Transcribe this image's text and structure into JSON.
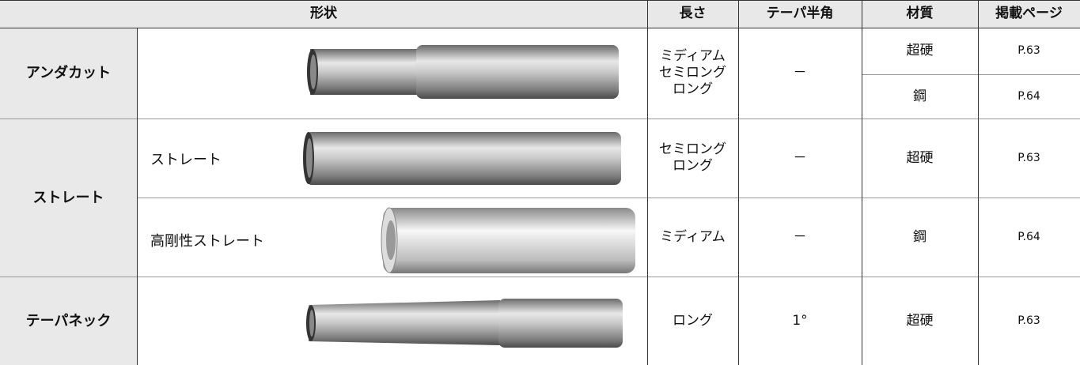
{
  "header": {
    "shape": "形状",
    "length": "長さ",
    "taper": "テーパ半角",
    "material": "材質",
    "page": "掲載ページ"
  },
  "rows": [
    {
      "category": "アンダカット",
      "lengths": [
        "ミディアム",
        "セミロング",
        "ロング"
      ],
      "taper": "－",
      "materials": [
        {
          "material": "超硬",
          "page": "P.63"
        },
        {
          "material": "鋼",
          "page": "P.64"
        }
      ]
    },
    {
      "category": "ストレート",
      "variants": [
        {
          "name": "ストレート",
          "lengths": [
            "セミロング",
            "ロング"
          ],
          "taper": "－",
          "material": "超硬",
          "page": "P.63"
        },
        {
          "name": "高剛性ストレート",
          "lengths": [
            "ミディアム"
          ],
          "taper": "－",
          "material": "鋼",
          "page": "P.64"
        }
      ]
    },
    {
      "category": "テーパネック",
      "lengths": [
        "ロング"
      ],
      "taper": "1°",
      "material": "超硬",
      "page": "P.63"
    }
  ]
}
